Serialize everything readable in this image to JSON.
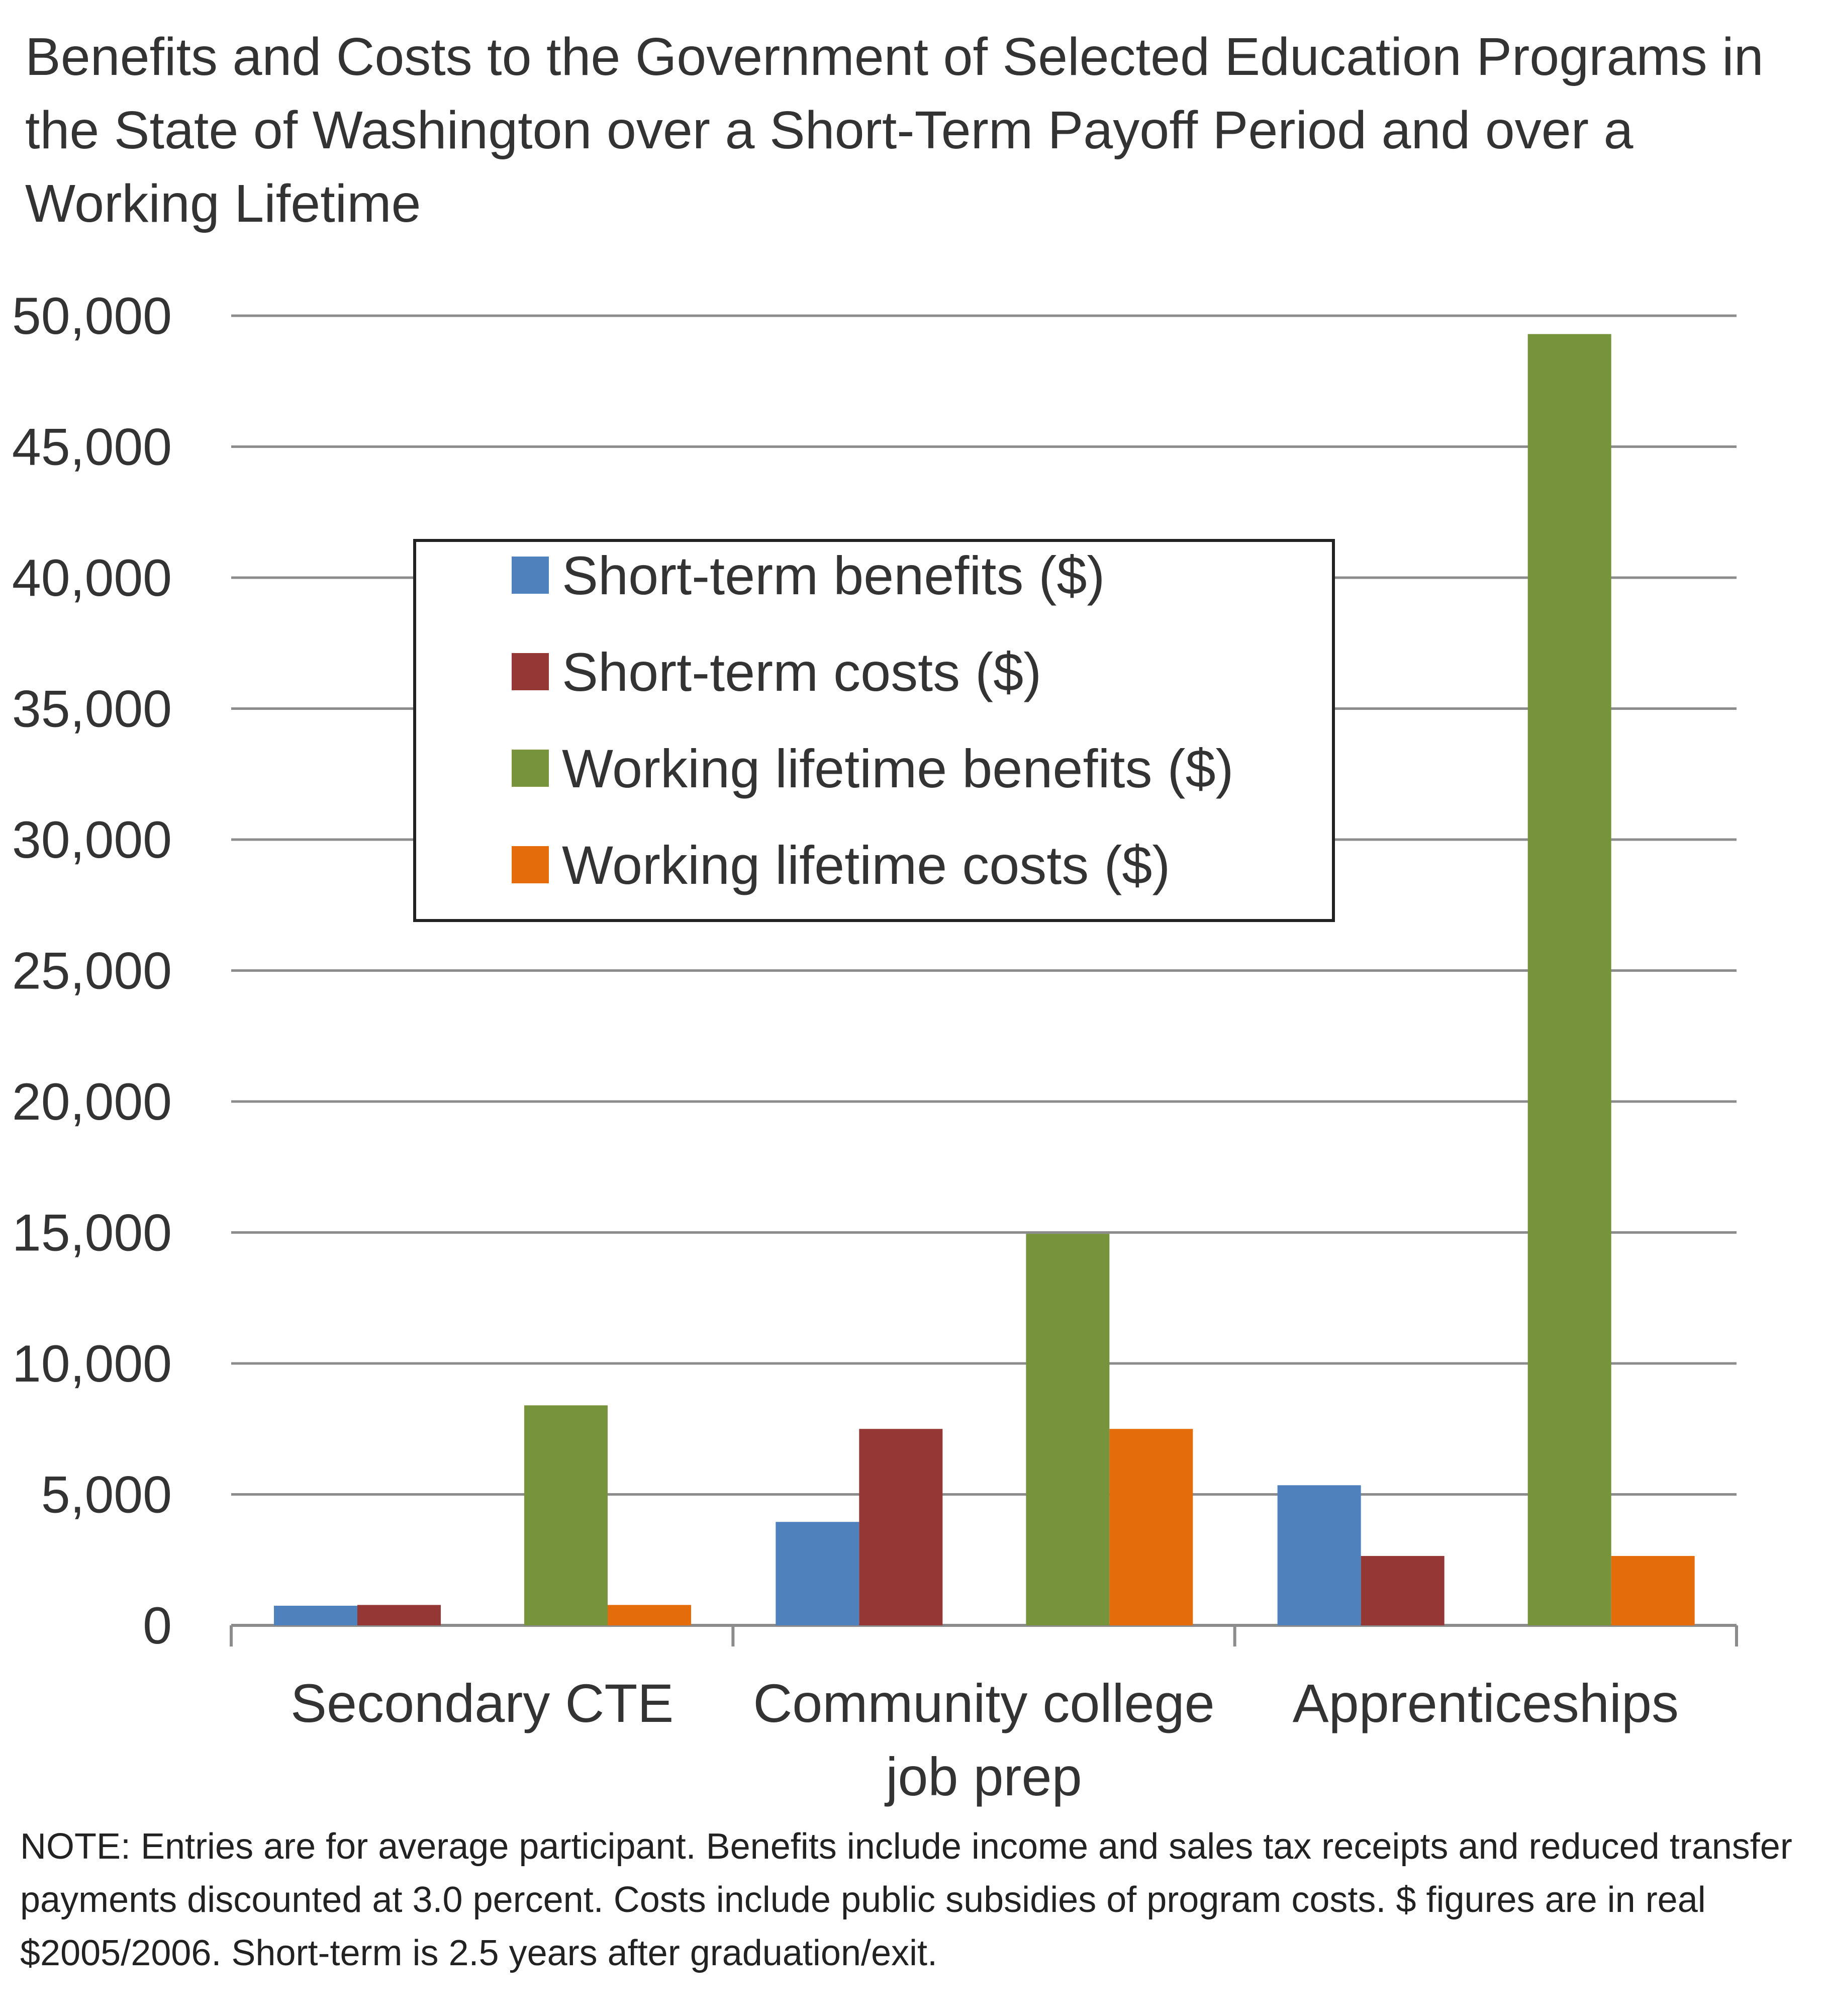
{
  "chart_data": {
    "type": "bar",
    "title": "Benefits and Costs to the Government of Selected Education Programs in the State of Washington over a Short-Term Payoff Period and over a Working Lifetime",
    "categories": [
      "Secondary CTE",
      "Community college job prep",
      "Apprenticeships"
    ],
    "series": [
      {
        "name": "Short-term benefits ($)",
        "color": "#4F81BD",
        "values": [
          750,
          3950,
          5350
        ]
      },
      {
        "name": "Short-term costs ($)",
        "color": "#953735",
        "values": [
          780,
          7500,
          2650
        ]
      },
      {
        "name": "Working lifetime benefits ($)",
        "color": "#77933C",
        "values": [
          8400,
          14950,
          49300
        ]
      },
      {
        "name": "Working lifetime costs ($)",
        "color": "#E46C0A",
        "values": [
          780,
          7500,
          2650
        ]
      }
    ],
    "ylim": [
      0,
      50000
    ],
    "yticks": [
      0,
      5000,
      10000,
      15000,
      20000,
      25000,
      30000,
      35000,
      40000,
      45000,
      50000
    ],
    "ytick_labels": [
      "0",
      "5,000",
      "10,000",
      "15,000",
      "20,000",
      "25,000",
      "30,000",
      "35,000",
      "40,000",
      "45,000",
      "50,000"
    ],
    "xlabel": "",
    "ylabel": "",
    "grid": true,
    "legend_position": "upper-center-left",
    "note": "NOTE: Entries are for average participant. Benefits include income and sales tax receipts and reduced transfer payments discounted at 3.0 percent. Costs include public subsidies of program costs. $ figures are in real $2005/2006. Short-term is 2.5 years after graduation/exit."
  }
}
